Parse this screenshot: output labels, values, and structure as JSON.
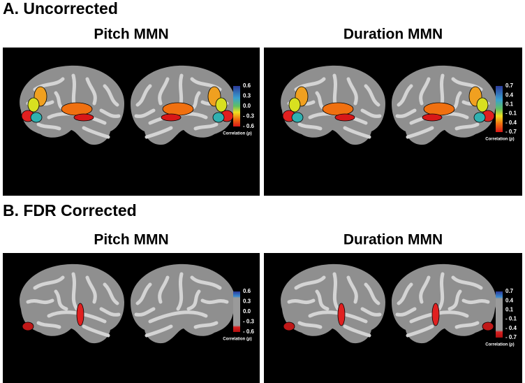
{
  "sections": [
    {
      "label": "A. Uncorrected",
      "panels": [
        {
          "title": "Pitch MMN",
          "colorbar": {
            "ticks": [
              "0.6",
              "0.3",
              "0.0",
              "- 0.3",
              "- 0.6"
            ],
            "label": "Correlation (ρ)"
          }
        },
        {
          "title": "Duration MMN",
          "colorbar": {
            "ticks": [
              "0.7",
              "0.4",
              "0.1",
              "- 0.1",
              "- 0.4",
              "- 0.7"
            ],
            "label": "Correlation (ρ)"
          }
        }
      ]
    },
    {
      "label": "B. FDR Corrected",
      "panels": [
        {
          "title": "Pitch MMN",
          "colorbar": {
            "ticks": [
              "0.6",
              "0.3",
              "0.0",
              "- 0.3",
              "- 0.6"
            ],
            "label": "Correlation (ρ)"
          }
        },
        {
          "title": "Duration MMN",
          "colorbar": {
            "ticks": [
              "0.7",
              "0.4",
              "0.1",
              "- 0.1",
              "- 0.4",
              "- 0.7"
            ],
            "label": "Correlation (ρ)"
          }
        }
      ]
    }
  ]
}
